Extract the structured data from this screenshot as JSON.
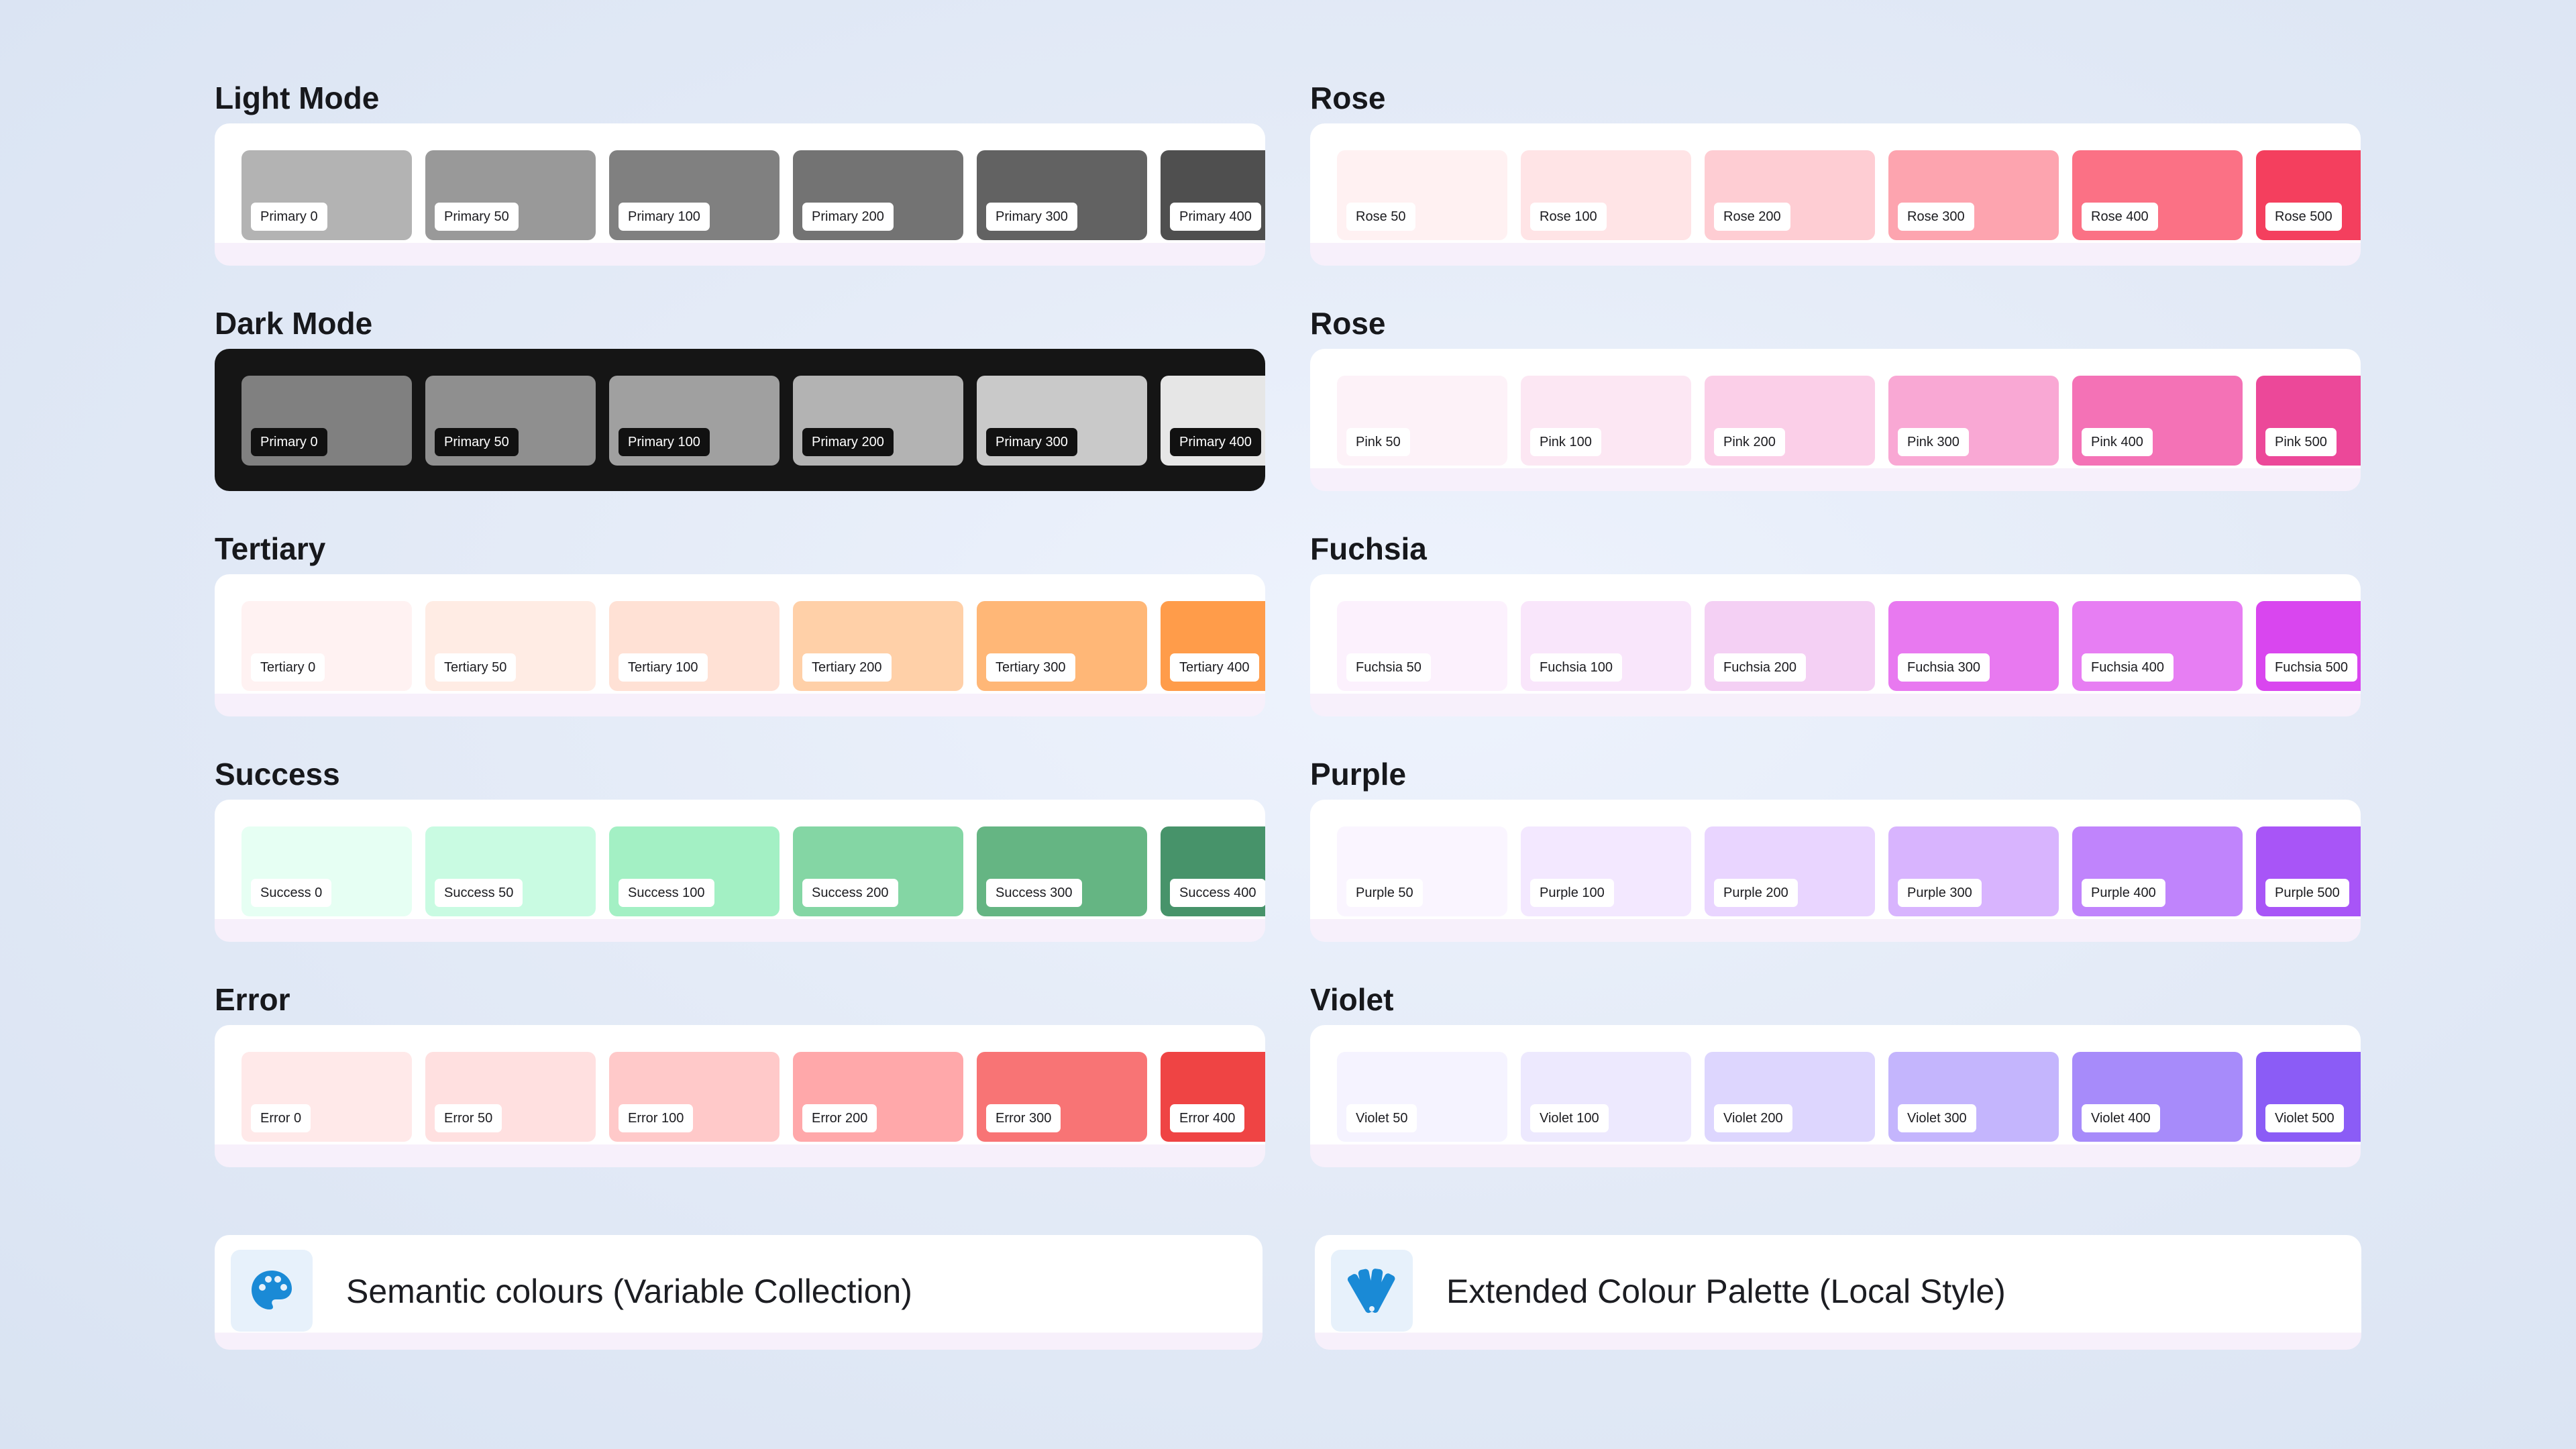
{
  "palettes": [
    {
      "title": "Light Mode",
      "theme": "light",
      "swatches": [
        {
          "label": "Primary 0",
          "color": "#b3b3b3"
        },
        {
          "label": "Primary 50",
          "color": "#999999"
        },
        {
          "label": "Primary 100",
          "color": "#808080"
        },
        {
          "label": "Primary 200",
          "color": "#737373"
        },
        {
          "label": "Primary 300",
          "color": "#626262"
        },
        {
          "label": "Primary 400",
          "color": "#4f4f4f"
        }
      ]
    },
    {
      "title": "Rose",
      "theme": "light",
      "swatches": [
        {
          "label": "Rose 50",
          "color": "#fff1f2"
        },
        {
          "label": "Rose 100",
          "color": "#ffe4e6"
        },
        {
          "label": "Rose 200",
          "color": "#fecdd3"
        },
        {
          "label": "Rose 300",
          "color": "#fda4af"
        },
        {
          "label": "Rose 400",
          "color": "#fb7185"
        },
        {
          "label": "Rose 500",
          "color": "#f43f5e"
        }
      ]
    },
    {
      "title": "Dark Mode",
      "theme": "dark",
      "swatches": [
        {
          "label": "Primary 0",
          "color": "#808080"
        },
        {
          "label": "Primary 50",
          "color": "#8f8f8f"
        },
        {
          "label": "Primary 100",
          "color": "#a0a0a0"
        },
        {
          "label": "Primary 200",
          "color": "#b3b3b3"
        },
        {
          "label": "Primary 300",
          "color": "#c9c9c9"
        },
        {
          "label": "Primary 400",
          "color": "#e6e6e6"
        }
      ]
    },
    {
      "title": "Rose",
      "theme": "light",
      "swatches": [
        {
          "label": "Pink 50",
          "color": "#fdf2f8"
        },
        {
          "label": "Pink 100",
          "color": "#fce7f3"
        },
        {
          "label": "Pink 200",
          "color": "#fbcfe8"
        },
        {
          "label": "Pink 300",
          "color": "#f9a8d4"
        },
        {
          "label": "Pink 400",
          "color": "#f472b6"
        },
        {
          "label": "Pink 500",
          "color": "#ec4899"
        }
      ]
    },
    {
      "title": "Tertiary",
      "theme": "light",
      "swatches": [
        {
          "label": "Tertiary 0",
          "color": "#fff2f2"
        },
        {
          "label": "Tertiary 50",
          "color": "#ffece4"
        },
        {
          "label": "Tertiary 100",
          "color": "#ffe1d5"
        },
        {
          "label": "Tertiary 200",
          "color": "#ffd0a8"
        },
        {
          "label": "Tertiary 300",
          "color": "#ffb777"
        },
        {
          "label": "Tertiary 400",
          "color": "#ff9c4a"
        }
      ]
    },
    {
      "title": "Fuchsia",
      "theme": "light",
      "swatches": [
        {
          "label": "Fuchsia 50",
          "color": "#fcf1fd"
        },
        {
          "label": "Fuchsia 100",
          "color": "#f9e6fb"
        },
        {
          "label": "Fuchsia 200",
          "color": "#f4d0f4"
        },
        {
          "label": "Fuchsia 300",
          "color": "#e879f0"
        },
        {
          "label": "Fuchsia 400",
          "color": "#e77ef3"
        },
        {
          "label": "Fuchsia 500",
          "color": "#d946ef"
        }
      ]
    },
    {
      "title": "Success",
      "theme": "light",
      "swatches": [
        {
          "label": "Success 0",
          "color": "#e6fff3"
        },
        {
          "label": "Success 50",
          "color": "#c9fbe2"
        },
        {
          "label": "Success 100",
          "color": "#a3f0c4"
        },
        {
          "label": "Success 200",
          "color": "#84d6a4"
        },
        {
          "label": "Success 300",
          "color": "#65b583"
        },
        {
          "label": "Success 400",
          "color": "#47936a"
        }
      ]
    },
    {
      "title": "Purple",
      "theme": "light",
      "swatches": [
        {
          "label": "Purple 50",
          "color": "#faf5ff"
        },
        {
          "label": "Purple 100",
          "color": "#f3e8ff"
        },
        {
          "label": "Purple 200",
          "color": "#e9d5ff"
        },
        {
          "label": "Purple 300",
          "color": "#d8b4fe"
        },
        {
          "label": "Purple 400",
          "color": "#c084fc"
        },
        {
          "label": "Purple 500",
          "color": "#a855f7"
        }
      ]
    },
    {
      "title": "Error",
      "theme": "light",
      "swatches": [
        {
          "label": "Error 0",
          "color": "#ffe9e9"
        },
        {
          "label": "Error 50",
          "color": "#ffe0e0"
        },
        {
          "label": "Error 100",
          "color": "#ffc9c9"
        },
        {
          "label": "Error 200",
          "color": "#ffa8aa"
        },
        {
          "label": "Error 300",
          "color": "#f87475"
        },
        {
          "label": "Error 400",
          "color": "#ef4444"
        }
      ]
    },
    {
      "title": "Violet",
      "theme": "light",
      "swatches": [
        {
          "label": "Violet 50",
          "color": "#f5f3ff"
        },
        {
          "label": "Violet 100",
          "color": "#ede9fe"
        },
        {
          "label": "Violet 200",
          "color": "#ddd6fe"
        },
        {
          "label": "Violet 300",
          "color": "#c4b5fd"
        },
        {
          "label": "Violet 400",
          "color": "#a78bfa"
        },
        {
          "label": "Violet 500",
          "color": "#8b5cf6"
        }
      ]
    }
  ],
  "footer": {
    "semantic": {
      "label": "Semantic colours (Variable Collection)",
      "icon": "palette-icon"
    },
    "extended": {
      "label": "Extended Colour Palette (Local Style)",
      "icon": "swatchbook-icon"
    }
  },
  "colors": {
    "icon_blue": "#1a8ad6",
    "icon_bg": "#e7f1fb"
  }
}
